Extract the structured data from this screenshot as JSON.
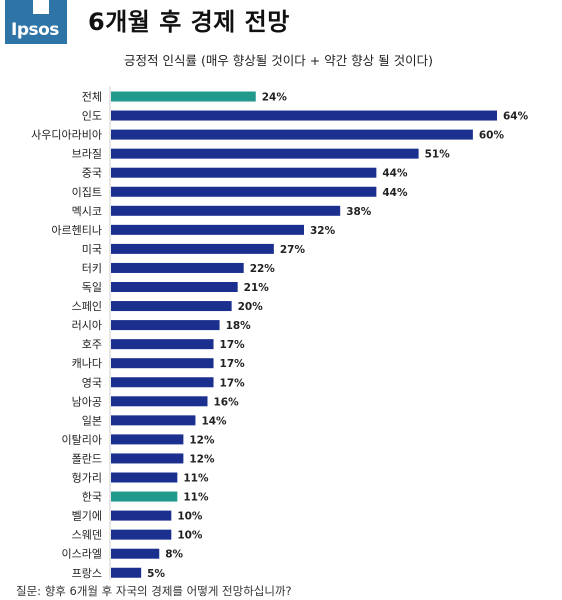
{
  "logo": {
    "text": "Ipsos"
  },
  "header": {
    "title": "6개월 후 경제 전망",
    "subtitle": "긍정적 인식률 (매우 향상될 것이다 + 약간 향상 될 것이다)"
  },
  "footnote": "질문: 향후 6개월 후 자국의 경제를 어떻게 전망하십니까?",
  "colors": {
    "default_bar": "#1b2f8f",
    "highlight_bar": "#21998c",
    "logo_bg": "#2f74a6"
  },
  "chart_data": {
    "type": "bar",
    "orientation": "horizontal",
    "title": "긍정적 인식률 (매우 향상될 것이다 + 약간 향상 될 것이다)",
    "categories": [
      "전체",
      "인도",
      "사우디아라비아",
      "브라질",
      "중국",
      "이집트",
      "멕시코",
      "아르헨티나",
      "미국",
      "터키",
      "독일",
      "스페인",
      "러시아",
      "호주",
      "캐나다",
      "영국",
      "남아공",
      "일본",
      "이탈리아",
      "폴란드",
      "헝가리",
      "한국",
      "벨기에",
      "스웨덴",
      "이스라엘",
      "프랑스"
    ],
    "values": [
      24,
      64,
      60,
      51,
      44,
      44,
      38,
      32,
      27,
      22,
      21,
      20,
      18,
      17,
      17,
      17,
      16,
      14,
      12,
      12,
      11,
      11,
      10,
      10,
      8,
      5
    ],
    "value_labels": [
      "24%",
      "64%",
      "60%",
      "51%",
      "44%",
      "44%",
      "38%",
      "32%",
      "27%",
      "22%",
      "21%",
      "20%",
      "18%",
      "17%",
      "17%",
      "17%",
      "16%",
      "14%",
      "12%",
      "12%",
      "11%",
      "11%",
      "10%",
      "10%",
      "8%",
      "5%"
    ],
    "highlighted": [
      "전체",
      "한국"
    ],
    "xlim": [
      0,
      64
    ],
    "grid": false,
    "legend": false
  }
}
